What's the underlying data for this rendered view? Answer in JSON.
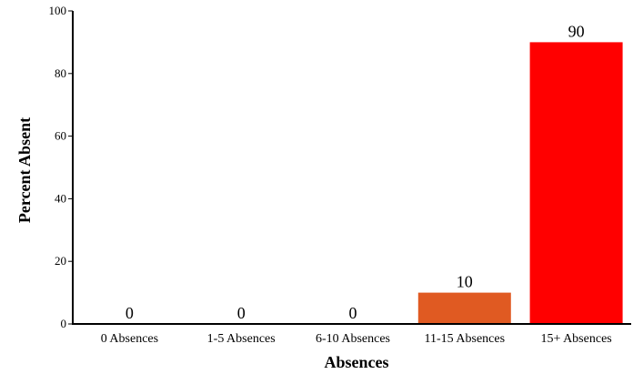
{
  "chart_data": {
    "type": "bar",
    "xlabel": "Absences",
    "ylabel": "Percent Absent",
    "ylim": [
      0,
      100
    ],
    "yticks": [
      0,
      20,
      40,
      60,
      80,
      100
    ],
    "categories": [
      "0 Absences",
      "1-5 Absences",
      "6-10 Absences",
      "11-15 Absences",
      "15+ Absences"
    ],
    "values": [
      0,
      0,
      0,
      10,
      90
    ],
    "data_labels": [
      "0",
      "0",
      "0",
      "10",
      "90"
    ],
    "bar_colors": [
      "#e05a22",
      "#e05a22",
      "#e05a22",
      "#e05a22",
      "#ff0000"
    ],
    "grid": false,
    "legend": "none"
  }
}
